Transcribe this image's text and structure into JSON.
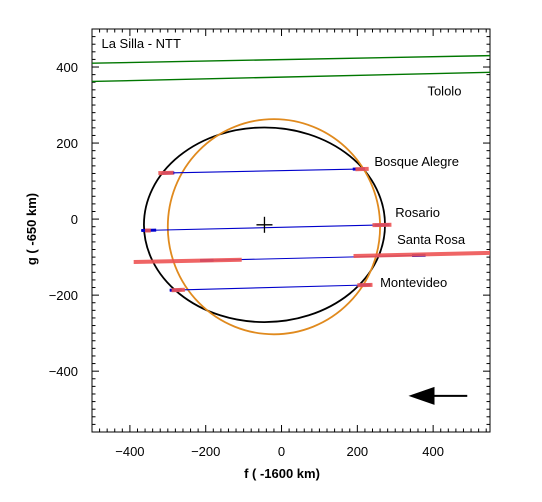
{
  "chart_data": {
    "type": "scatter",
    "title": "",
    "xlabel": "f ( -1600 km)",
    "ylabel": "g ( -650 km)",
    "xlim": [
      -500,
      550
    ],
    "ylim": [
      -560,
      500
    ],
    "xticks": [
      -400,
      -200,
      0,
      200,
      400
    ],
    "yticks": [
      -400,
      -200,
      0,
      200,
      400
    ],
    "grid": false,
    "annotations": [
      {
        "name": "la-silla-label",
        "text": "La Silla - NTT",
        "x": -475,
        "y": 450
      },
      {
        "name": "tololo-label",
        "text": "Tololo",
        "x": 385,
        "y": 325
      },
      {
        "name": "bosque-alegre-label",
        "text": "Bosque Alegre",
        "x": 245,
        "y": 140
      },
      {
        "name": "rosario-label",
        "text": "Rosario",
        "x": 300,
        "y": 5
      },
      {
        "name": "santa-rosa-label",
        "text": "Santa Rosa",
        "x": 305,
        "y": -65
      },
      {
        "name": "montevideo-label",
        "text": "Montevideo",
        "x": 260,
        "y": -178
      }
    ],
    "series": [
      {
        "kind": "negative-chord",
        "color": "#007700",
        "points": [
          [
            -500,
            410
          ],
          [
            550,
            430
          ]
        ]
      },
      {
        "kind": "negative-chord",
        "color": "#007700",
        "points": [
          [
            -500,
            362
          ],
          [
            550,
            386
          ]
        ]
      },
      {
        "kind": "chord",
        "color": "#0000cc",
        "points": [
          [
            -315,
            121
          ],
          [
            220,
            132
          ]
        ]
      },
      {
        "kind": "chord",
        "color": "#0000cc",
        "points": [
          [
            -370,
            -30
          ],
          [
            285,
            -15
          ]
        ]
      },
      {
        "kind": "chord",
        "color": "#0000cc",
        "points": [
          [
            -215,
            -109
          ],
          [
            380,
            -95
          ]
        ]
      },
      {
        "kind": "chord",
        "color": "#0000cc",
        "points": [
          [
            -295,
            -187
          ],
          [
            235,
            -173
          ]
        ]
      }
    ],
    "error_bars": [
      {
        "color": "#ee5555",
        "points": [
          [
            -325,
            121
          ],
          [
            -285,
            122
          ]
        ]
      },
      {
        "color": "#ee5555",
        "points": [
          [
            195,
            131
          ],
          [
            230,
            132
          ]
        ]
      },
      {
        "color": "#ee5555",
        "points": [
          [
            -360,
            -30
          ],
          [
            -345,
            -30
          ]
        ]
      },
      {
        "color": "#ee5555",
        "points": [
          [
            240,
            -16
          ],
          [
            290,
            -15
          ]
        ]
      },
      {
        "color": "#ee5555",
        "points": [
          [
            -390,
            -113
          ],
          [
            -105,
            -107
          ]
        ]
      },
      {
        "color": "#ee5555",
        "points": [
          [
            190,
            -97
          ],
          [
            550,
            -89
          ]
        ]
      },
      {
        "color": "#ee5555",
        "points": [
          [
            -290,
            -187
          ],
          [
            -255,
            -186
          ]
        ]
      },
      {
        "color": "#ee5555",
        "points": [
          [
            200,
            -174
          ],
          [
            240,
            -173
          ]
        ]
      }
    ],
    "ellipses": [
      {
        "kind": "fit-ellipse",
        "color": "#000000",
        "cx": -45,
        "cy": -15,
        "rx": 318,
        "ry": 256,
        "angle_deg": 0
      },
      {
        "kind": "circle-fit",
        "color": "#e08a1e",
        "cx": -20,
        "cy": -20,
        "rx": 280,
        "ry": 283,
        "angle_deg": 0
      }
    ],
    "center_marker": {
      "x": -45,
      "y": -15
    },
    "direction_arrow": {
      "from": [
        490,
        -465
      ],
      "to": [
        335,
        -465
      ]
    }
  }
}
